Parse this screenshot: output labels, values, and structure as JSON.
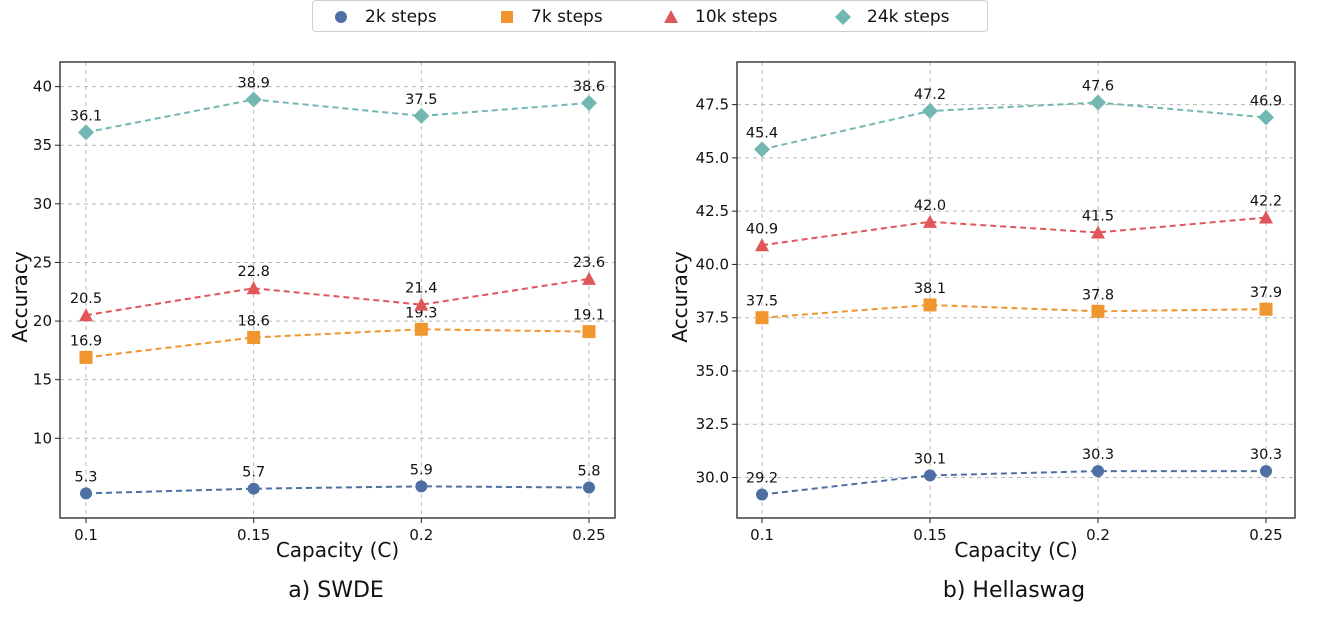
{
  "legend": {
    "items": [
      {
        "label": "2k steps",
        "color": "#4e6fa3",
        "marker": "circle"
      },
      {
        "label": "7k steps",
        "color": "#f0962e",
        "marker": "square"
      },
      {
        "label": "10k steps",
        "color": "#e0565b",
        "marker": "triangle"
      },
      {
        "label": "24k steps",
        "color": "#72b7b2",
        "marker": "diamond"
      }
    ]
  },
  "captions": {
    "left": "a) SWDE",
    "right": "b) Hellaswag"
  },
  "chart_data": [
    {
      "type": "line",
      "title": "",
      "xlabel": "Capacity (C)",
      "ylabel": "Accuracy",
      "x": [
        0.1,
        0.15,
        0.2,
        0.25
      ],
      "xticklabels": [
        "0.1",
        "0.15",
        "0.2",
        "0.25"
      ],
      "ylim": [
        3.2,
        42.1
      ],
      "yticks": [
        10,
        15,
        20,
        25,
        30,
        35,
        40
      ],
      "yticklabels": [
        "10",
        "15",
        "20",
        "25",
        "30",
        "35",
        "40"
      ],
      "grid": true,
      "series": [
        {
          "name": "2k steps",
          "values": [
            5.3,
            5.7,
            5.9,
            5.8
          ],
          "labels": [
            "5.3",
            "5.7",
            "5.9",
            "5.8"
          ]
        },
        {
          "name": "7k steps",
          "values": [
            16.9,
            18.6,
            19.3,
            19.1
          ],
          "labels": [
            "16.9",
            "18.6",
            "19.3",
            "19.1"
          ]
        },
        {
          "name": "10k steps",
          "values": [
            20.5,
            22.8,
            21.4,
            23.6
          ],
          "labels": [
            "20.5",
            "22.8",
            "21.4",
            "23.6"
          ]
        },
        {
          "name": "24k steps",
          "values": [
            36.1,
            38.9,
            37.5,
            38.6
          ],
          "labels": [
            "36.1",
            "38.9",
            "37.5",
            "38.6"
          ]
        }
      ]
    },
    {
      "type": "line",
      "title": "",
      "xlabel": "Capacity (C)",
      "ylabel": "Accuracy",
      "x": [
        0.1,
        0.15,
        0.2,
        0.25
      ],
      "xticklabels": [
        "0.1",
        "0.15",
        "0.2",
        "0.25"
      ],
      "ylim": [
        28.1,
        49.5
      ],
      "yticks": [
        30.0,
        32.5,
        35.0,
        37.5,
        40.0,
        42.5,
        45.0,
        47.5
      ],
      "yticklabels": [
        "30.0",
        "32.5",
        "35.0",
        "37.5",
        "40.0",
        "42.5",
        "45.0",
        "47.5"
      ],
      "grid": true,
      "series": [
        {
          "name": "2k steps",
          "values": [
            29.2,
            30.1,
            30.3,
            30.3
          ],
          "labels": [
            "29.2",
            "30.1",
            "30.3",
            "30.3"
          ]
        },
        {
          "name": "7k steps",
          "values": [
            37.5,
            38.1,
            37.8,
            37.9
          ],
          "labels": [
            "37.5",
            "38.1",
            "37.8",
            "37.9"
          ]
        },
        {
          "name": "10k steps",
          "values": [
            40.9,
            42.0,
            41.5,
            42.2
          ],
          "labels": [
            "40.9",
            "42.0",
            "41.5",
            "42.2"
          ]
        },
        {
          "name": "24k steps",
          "values": [
            45.4,
            47.2,
            47.6,
            46.9
          ],
          "labels": [
            "45.4",
            "47.2",
            "47.6",
            "46.9"
          ]
        }
      ]
    }
  ]
}
